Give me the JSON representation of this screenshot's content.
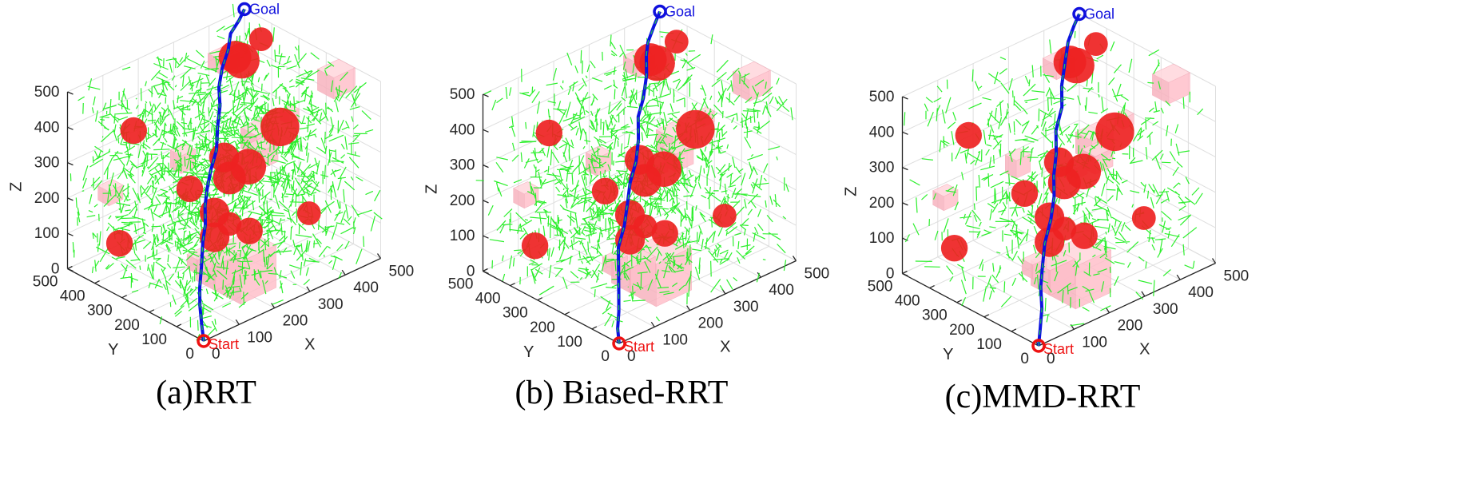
{
  "colors": {
    "tree": "#22ee22",
    "path": "#0b12e0",
    "path_inner": "#22cc44",
    "sphere_obstacle": "#ee2222",
    "box_obstacle": "#ffc0cb",
    "start": "#ee1111",
    "goal": "#1010dd",
    "grid": "#dedede",
    "axis": "#262626"
  },
  "chart_data": [
    {
      "type": "scatter",
      "title": "",
      "caption": "(a)RRT",
      "xlabel": "X",
      "ylabel": "Y",
      "zlabel": "Z",
      "xlim": [
        0,
        500
      ],
      "ylim": [
        0,
        500
      ],
      "zlim": [
        0,
        500
      ],
      "x_ticks": [
        "0",
        "100",
        "200",
        "300",
        "400",
        "500"
      ],
      "y_ticks": [
        "0",
        "100",
        "200",
        "300",
        "400",
        "500"
      ],
      "z_ticks": [
        "0",
        "100",
        "200",
        "300",
        "400",
        "500"
      ],
      "grid": true,
      "start": {
        "label": "Start",
        "x": 0,
        "y": 0,
        "z": 0
      },
      "goal": {
        "label": "Goal",
        "x": 500,
        "y": 500,
        "z": 500
      },
      "tree_density": 1700,
      "seed": 11,
      "path": [
        [
          0,
          0,
          0
        ],
        [
          10,
          20,
          30
        ],
        [
          20,
          40,
          75
        ],
        [
          35,
          60,
          110
        ],
        [
          55,
          80,
          150
        ],
        [
          90,
          120,
          190
        ],
        [
          120,
          150,
          210
        ],
        [
          150,
          190,
          235
        ],
        [
          175,
          215,
          260
        ],
        [
          205,
          240,
          290
        ],
        [
          240,
          265,
          320
        ],
        [
          270,
          300,
          355
        ],
        [
          300,
          330,
          390
        ],
        [
          320,
          360,
          420
        ],
        [
          360,
          400,
          440
        ],
        [
          400,
          430,
          460
        ],
        [
          430,
          460,
          480
        ],
        [
          470,
          480,
          492
        ],
        [
          500,
          500,
          500
        ]
      ],
      "spheres": [
        [
          400,
          380,
          450,
          24
        ],
        [
          450,
          470,
          400,
          22
        ],
        [
          470,
          400,
          470,
          16
        ],
        [
          300,
          110,
          420,
          26
        ],
        [
          110,
          400,
          380,
          18
        ],
        [
          250,
          250,
          300,
          20
        ],
        [
          280,
          200,
          280,
          24
        ],
        [
          250,
          230,
          250,
          22
        ],
        [
          150,
          100,
          220,
          16
        ],
        [
          230,
          350,
          180,
          18
        ],
        [
          200,
          220,
          110,
          20
        ],
        [
          300,
          350,
          80,
          20
        ],
        [
          70,
          400,
          80,
          18
        ],
        [
          160,
          40,
          220,
          18
        ],
        [
          390,
          120,
          130,
          16
        ]
      ],
      "boxes": [
        [
          320,
          220,
          280,
          60,
          60,
          60
        ],
        [
          360,
          260,
          210,
          50,
          50,
          50
        ],
        [
          120,
          20,
          40,
          100,
          100,
          120
        ],
        [
          140,
          140,
          20,
          70,
          70,
          70
        ],
        [
          460,
          120,
          420,
          60,
          60,
          60
        ],
        [
          420,
          480,
          360,
          50,
          50,
          40
        ],
        [
          30,
          60,
          150,
          40,
          40,
          40
        ],
        [
          40,
          400,
          200,
          40,
          40,
          40
        ],
        [
          260,
          420,
          180,
          40,
          40,
          50
        ],
        [
          470,
          300,
          270,
          30,
          30,
          30
        ],
        [
          300,
          250,
          230,
          30,
          30,
          30
        ]
      ]
    },
    {
      "type": "scatter",
      "title": "",
      "caption": "(b) Biased-RRT",
      "xlabel": "X",
      "ylabel": "Y",
      "zlabel": "Z",
      "xlim": [
        0,
        500
      ],
      "ylim": [
        0,
        500
      ],
      "zlim": [
        0,
        500
      ],
      "x_ticks": [
        "0",
        "100",
        "200",
        "300",
        "400",
        "500"
      ],
      "y_ticks": [
        "0",
        "100",
        "200",
        "300",
        "400",
        "500"
      ],
      "z_ticks": [
        "0",
        "100",
        "200",
        "300",
        "400",
        "500"
      ],
      "grid": true,
      "start": {
        "label": "Start",
        "x": 0,
        "y": 0,
        "z": 0
      },
      "goal": {
        "label": "Goal",
        "x": 500,
        "y": 500,
        "z": 500
      },
      "tree_density": 1250,
      "seed": 23,
      "path": [
        [
          0,
          0,
          0
        ],
        [
          15,
          25,
          25
        ],
        [
          30,
          40,
          60
        ],
        [
          45,
          60,
          100
        ],
        [
          60,
          80,
          140
        ],
        [
          90,
          120,
          180
        ],
        [
          130,
          150,
          210
        ],
        [
          170,
          190,
          240
        ],
        [
          200,
          220,
          270
        ],
        [
          240,
          250,
          300
        ],
        [
          270,
          280,
          335
        ],
        [
          300,
          320,
          370
        ],
        [
          330,
          340,
          400
        ],
        [
          370,
          380,
          430
        ],
        [
          400,
          420,
          455
        ],
        [
          420,
          440,
          475
        ],
        [
          460,
          470,
          490
        ],
        [
          500,
          500,
          500
        ]
      ],
      "spheres": [
        [
          400,
          380,
          450,
          24
        ],
        [
          450,
          470,
          400,
          22
        ],
        [
          470,
          400,
          470,
          16
        ],
        [
          300,
          110,
          420,
          26
        ],
        [
          110,
          400,
          380,
          18
        ],
        [
          250,
          250,
          300,
          20
        ],
        [
          280,
          200,
          280,
          24
        ],
        [
          250,
          230,
          250,
          22
        ],
        [
          150,
          100,
          220,
          16
        ],
        [
          230,
          350,
          180,
          18
        ],
        [
          200,
          220,
          110,
          20
        ],
        [
          300,
          350,
          80,
          20
        ],
        [
          70,
          400,
          80,
          18
        ],
        [
          160,
          40,
          220,
          18
        ],
        [
          390,
          120,
          130,
          16
        ]
      ],
      "boxes": [
        [
          320,
          220,
          280,
          60,
          60,
          60
        ],
        [
          360,
          260,
          210,
          50,
          50,
          50
        ],
        [
          120,
          20,
          40,
          100,
          100,
          120
        ],
        [
          140,
          140,
          20,
          70,
          70,
          70
        ],
        [
          460,
          120,
          420,
          60,
          60,
          60
        ],
        [
          420,
          480,
          360,
          50,
          50,
          40
        ],
        [
          30,
          60,
          150,
          40,
          40,
          40
        ],
        [
          40,
          400,
          200,
          40,
          40,
          40
        ],
        [
          260,
          420,
          180,
          40,
          40,
          50
        ],
        [
          470,
          300,
          270,
          30,
          30,
          30
        ],
        [
          300,
          250,
          230,
          30,
          30,
          30
        ]
      ]
    },
    {
      "type": "scatter",
      "title": "",
      "caption": "(c)MMD-RRT",
      "xlabel": "X",
      "ylabel": "Y",
      "zlabel": "Z",
      "xlim": [
        0,
        500
      ],
      "ylim": [
        0,
        500
      ],
      "zlim": [
        0,
        500
      ],
      "x_ticks": [
        "0",
        "100",
        "200",
        "300",
        "400",
        "500"
      ],
      "y_ticks": [
        "0",
        "100",
        "200",
        "300",
        "400",
        "500"
      ],
      "z_ticks": [
        "0",
        "100",
        "200",
        "300",
        "400",
        "500"
      ],
      "grid": true,
      "start": {
        "label": "Start",
        "x": 0,
        "y": 0,
        "z": 0
      },
      "goal": {
        "label": "Goal",
        "x": 500,
        "y": 500,
        "z": 500
      },
      "tree_density": 650,
      "seed": 37,
      "path": [
        [
          0,
          0,
          0
        ],
        [
          20,
          20,
          30
        ],
        [
          40,
          40,
          70
        ],
        [
          60,
          70,
          110
        ],
        [
          80,
          90,
          150
        ],
        [
          110,
          120,
          190
        ],
        [
          150,
          150,
          225
        ],
        [
          190,
          190,
          255
        ],
        [
          220,
          230,
          285
        ],
        [
          250,
          260,
          320
        ],
        [
          280,
          300,
          355
        ],
        [
          320,
          330,
          390
        ],
        [
          350,
          370,
          420
        ],
        [
          390,
          410,
          450
        ],
        [
          430,
          450,
          475
        ],
        [
          470,
          480,
          490
        ],
        [
          500,
          500,
          500
        ]
      ],
      "spheres": [
        [
          400,
          380,
          450,
          24
        ],
        [
          450,
          470,
          400,
          22
        ],
        [
          470,
          400,
          470,
          16
        ],
        [
          300,
          110,
          420,
          26
        ],
        [
          110,
          400,
          380,
          18
        ],
        [
          250,
          250,
          300,
          20
        ],
        [
          280,
          200,
          280,
          24
        ],
        [
          250,
          230,
          250,
          22
        ],
        [
          150,
          100,
          220,
          16
        ],
        [
          230,
          350,
          180,
          18
        ],
        [
          200,
          220,
          110,
          20
        ],
        [
          300,
          350,
          80,
          20
        ],
        [
          70,
          400,
          80,
          18
        ],
        [
          160,
          40,
          220,
          18
        ],
        [
          390,
          120,
          130,
          16
        ]
      ],
      "boxes": [
        [
          320,
          220,
          280,
          60,
          60,
          60
        ],
        [
          360,
          260,
          210,
          50,
          50,
          50
        ],
        [
          120,
          20,
          40,
          100,
          100,
          120
        ],
        [
          140,
          140,
          20,
          70,
          70,
          70
        ],
        [
          460,
          120,
          420,
          60,
          60,
          60
        ],
        [
          420,
          480,
          360,
          50,
          50,
          40
        ],
        [
          30,
          60,
          150,
          40,
          40,
          40
        ],
        [
          40,
          400,
          200,
          40,
          40,
          40
        ],
        [
          260,
          420,
          180,
          40,
          40,
          50
        ],
        [
          470,
          300,
          270,
          30,
          30,
          30
        ],
        [
          300,
          250,
          230,
          30,
          30,
          30
        ]
      ]
    }
  ]
}
